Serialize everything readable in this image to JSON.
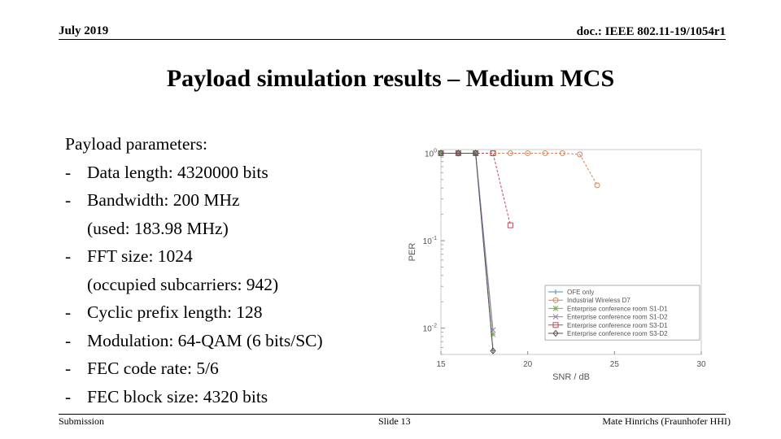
{
  "header": {
    "date": "July 2019",
    "doc": "doc.: IEEE 802.11-19/1054r1"
  },
  "title": "Payload simulation results – Medium MCS",
  "params": {
    "heading": "Payload parameters:",
    "items": [
      {
        "text": "Data length: 4320000 bits"
      },
      {
        "text": "Bandwidth: 200 MHz",
        "sub": "(used: 183.98 MHz)"
      },
      {
        "text": "FFT size: 1024",
        "sub": "(occupied subcarriers: 942)"
      },
      {
        "text": "Cyclic prefix length: 128"
      },
      {
        "text": "Modulation: 64-QAM (6 bits/SC)"
      },
      {
        "text": "FEC code rate: 5/6"
      },
      {
        "text": "FEC block size: 4320 bits"
      }
    ]
  },
  "chart_data": {
    "type": "line",
    "xlabel": "SNR / dB",
    "ylabel": "PER",
    "xlim": [
      15,
      30
    ],
    "ylim": [
      0.005,
      1.1
    ],
    "yscale": "log",
    "xticks": [
      15,
      20,
      25,
      30
    ],
    "yticks": [
      {
        "value": 1,
        "base": "10",
        "exp": "0"
      },
      {
        "value": 0.1,
        "base": "10",
        "exp": "-1"
      },
      {
        "value": 0.01,
        "base": "10",
        "exp": "-2"
      }
    ],
    "legend_position": "bottom-right",
    "grid": false,
    "series": [
      {
        "name": "OFE only",
        "color": "#4a8fc0",
        "marker": "plus",
        "points": [
          [
            15,
            1
          ],
          [
            16,
            1
          ],
          [
            17,
            1
          ],
          [
            18,
            0.0055
          ]
        ]
      },
      {
        "name": "Industrial Wireless D7",
        "color": "#d9835a",
        "marker": "circle",
        "points": [
          [
            15,
            1
          ],
          [
            16,
            1
          ],
          [
            17,
            1
          ],
          [
            18,
            1
          ],
          [
            19,
            1
          ],
          [
            20,
            1
          ],
          [
            21,
            1
          ],
          [
            22,
            1
          ],
          [
            23,
            0.97
          ],
          [
            24,
            0.43
          ]
        ]
      },
      {
        "name": "Enterprise conference room S1-D1",
        "color": "#7ab648",
        "marker": "star",
        "points": [
          [
            15,
            1
          ],
          [
            16,
            1
          ],
          [
            17,
            1
          ],
          [
            18,
            0.0085
          ]
        ]
      },
      {
        "name": "Enterprise conference room S1-D2",
        "color": "#9a7bb8",
        "marker": "x",
        "points": [
          [
            15,
            1
          ],
          [
            16,
            1
          ],
          [
            17,
            1
          ],
          [
            18,
            0.0095
          ]
        ]
      },
      {
        "name": "Enterprise conference room S3-D1",
        "color": "#b84a5a",
        "marker": "square",
        "points": [
          [
            15,
            1
          ],
          [
            16,
            1
          ],
          [
            17,
            1
          ],
          [
            18,
            1
          ],
          [
            19,
            0.15
          ]
        ]
      },
      {
        "name": "Enterprise conference room S3-D2",
        "color": "#555555",
        "marker": "diamond",
        "points": [
          [
            15,
            1
          ],
          [
            16,
            1
          ],
          [
            17,
            1
          ],
          [
            18,
            0.0055
          ]
        ]
      }
    ]
  },
  "footer": {
    "left": "Submission",
    "center": "Slide 13",
    "right": "Mate Hinrichs (Fraunhofer HHI)"
  }
}
